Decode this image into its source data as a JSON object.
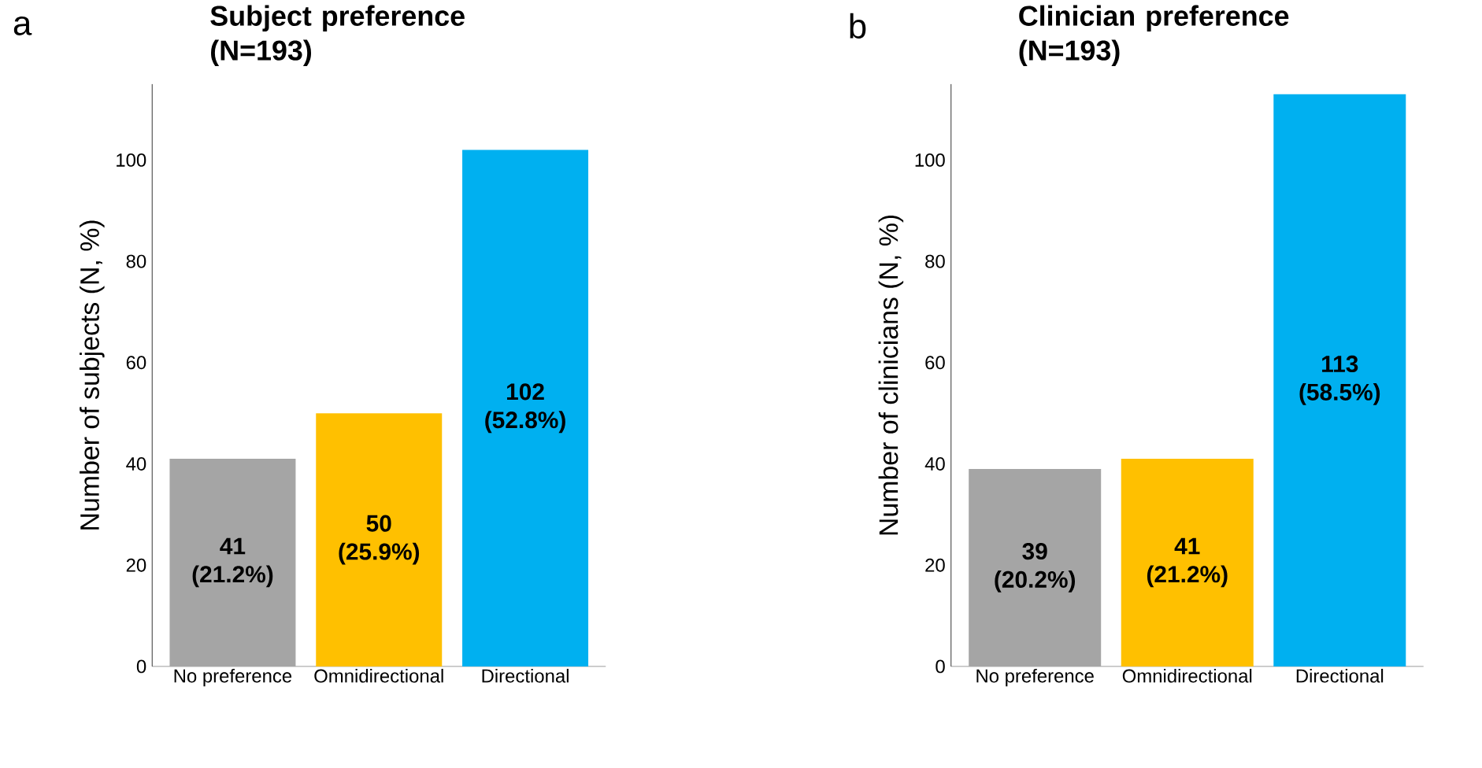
{
  "chart_data": [
    {
      "type": "bar",
      "title": "Subject preference (N=193)",
      "ylabel": "Number of subjects (N, %)",
      "categories": [
        "No preference",
        "Omnidirectional",
        "Directional"
      ],
      "values": [
        41,
        50,
        102
      ],
      "colors": [
        "#a5a5a5",
        "#ffc000",
        "#00b0f0"
      ],
      "value_labels": [
        "41 (21.2%)",
        "50 (25.9%)",
        "102 (52.8%)"
      ],
      "ylim": [
        0,
        115
      ],
      "yticks": [
        0,
        20,
        40,
        60,
        80,
        100
      ],
      "annotations": [
        "a"
      ]
    },
    {
      "type": "bar",
      "title": "Clinician preference (N=193)",
      "ylabel": "Number of clinicians (N, %)",
      "categories": [
        "No preference",
        "Omnidirectional",
        "Directional"
      ],
      "values": [
        39,
        41,
        113
      ],
      "colors": [
        "#a5a5a5",
        "#ffc000",
        "#00b0f0"
      ],
      "value_labels": [
        "39 (20.2%)",
        "41 (21.2%)",
        "113 (58.5%)"
      ],
      "ylim": [
        0,
        115
      ],
      "yticks": [
        0,
        20,
        40,
        60,
        80,
        100
      ],
      "annotations": [
        "b"
      ]
    }
  ]
}
